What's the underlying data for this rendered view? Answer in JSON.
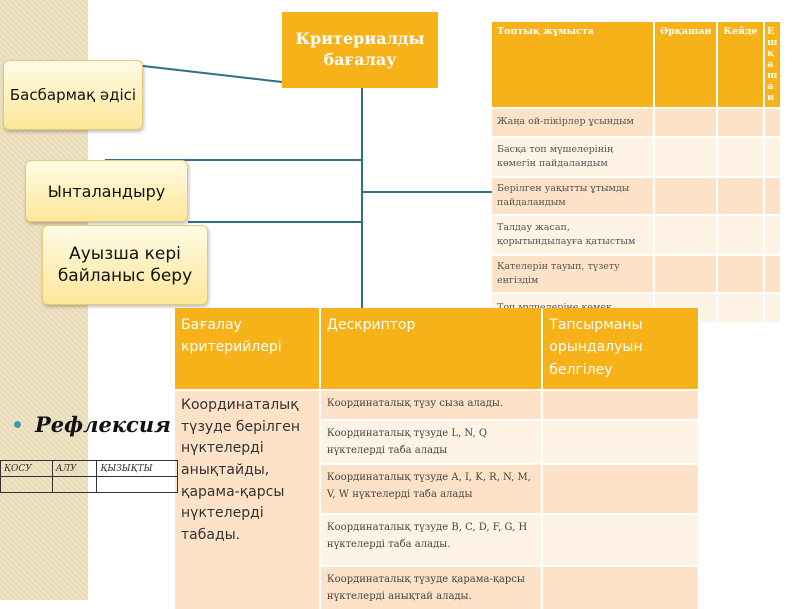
{
  "header": {
    "title": "Критериалды бағалау"
  },
  "methods": [
    "Басбармақ әдісі",
    "Ынталандыру",
    "Ауызша кері байланыс беру"
  ],
  "group_table": {
    "headers": [
      "Топтық жұмыста",
      "Әрқашан",
      "Кейде",
      "Ешқашан"
    ],
    "rows": [
      "Жаңа ой-пікірлер ұсындым",
      "Басқа топ мүшелерінің көмегін пайдаландым",
      "Берілген уақытты ұтымды пайдаландым",
      "Талдау жасап, қорытындылауға қатыстым",
      "Қателерін тауып, түзету енгіздім",
      "Топ мүшелеріне көмек"
    ]
  },
  "criteria_table": {
    "headers": [
      "Бағалау критерийлері",
      "Дескриптор",
      "Тапсырманы орындалуын белгілеу"
    ],
    "criterion": "Координаталық түзуде берілген нүктелерді анықтайды, қарама-қарсы нүктелерді табады.",
    "descriptors": [
      "Координаталық түзу сыза алады.",
      "Координаталық түзуде L, N, Q нүктелерді таба алады",
      "Координаталық түзуде A, I, K, R, N, M, V, W нүктелерді таба алады",
      "Координаталық түзуде B, C, D, F, G, H нүктелерді таба алады.",
      "Координаталық түзуде қарама-қарсы нүктелерді анықтай алады."
    ]
  },
  "reflection": {
    "title": "Рефлексия",
    "columns": [
      "ҚОСУ",
      "АЛУ",
      "ҚЫЗЫҚТЫ"
    ]
  },
  "colors": {
    "accent": "#f7b21a",
    "line": "#2f6f86",
    "bullet": "#3a9bb4"
  }
}
